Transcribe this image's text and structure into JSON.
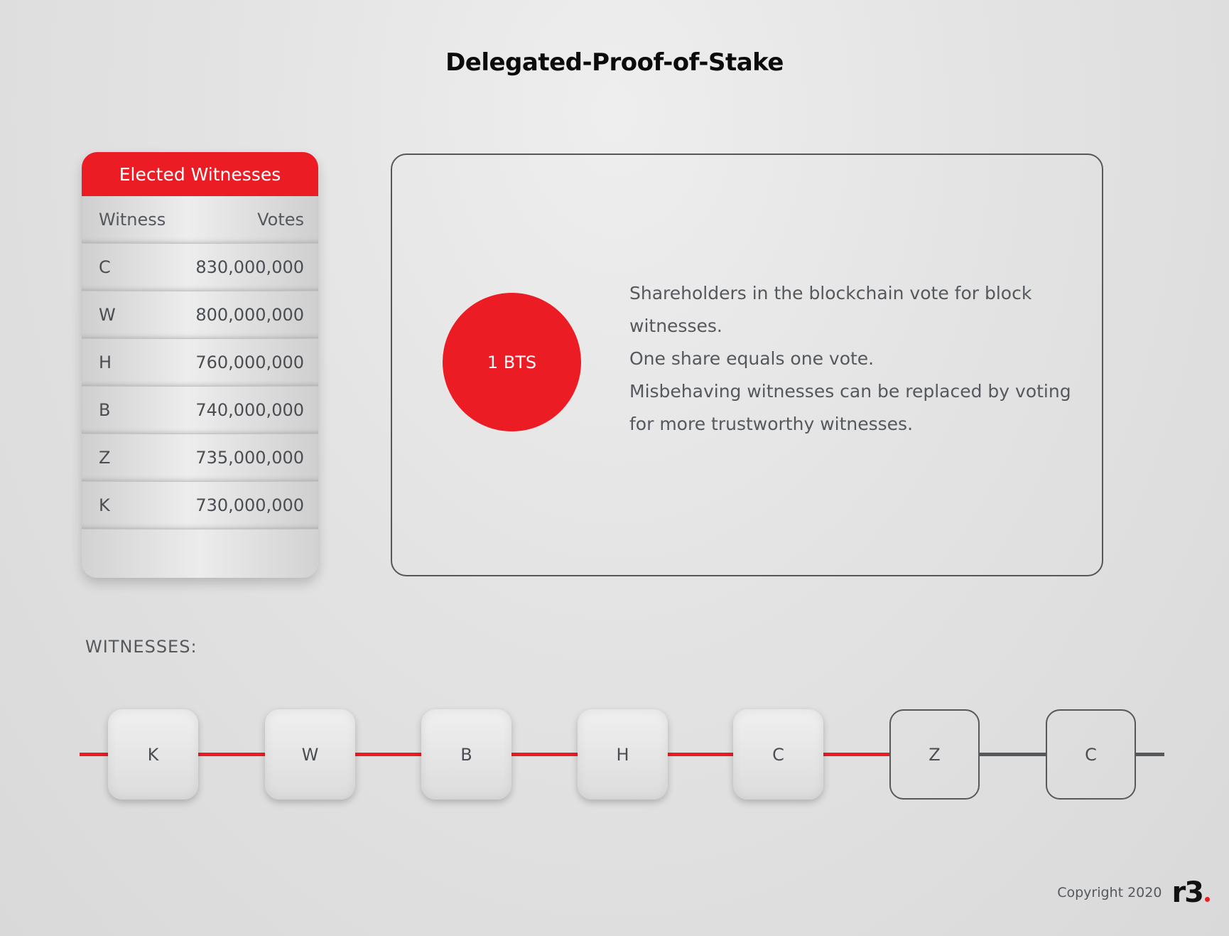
{
  "title": "Delegated-Proof-of-Stake",
  "elected": {
    "header": "Elected Witnesses",
    "col_witness": "Witness",
    "col_votes": "Votes",
    "rows": [
      {
        "witness": "C",
        "votes": "830,000,000"
      },
      {
        "witness": "W",
        "votes": "800,000,000"
      },
      {
        "witness": "H",
        "votes": "760,000,000"
      },
      {
        "witness": "B",
        "votes": "740,000,000"
      },
      {
        "witness": "Z",
        "votes": "735,000,000"
      },
      {
        "witness": "K",
        "votes": "730,000,000"
      }
    ]
  },
  "token": "1 BTS",
  "description": [
    "Shareholders in the blockchain vote for block witnesses.",
    "One share equals one vote.",
    "Misbehaving witnesses can be replaced by voting for more trustworthy witnesses."
  ],
  "witnesses_label": "WITNESSES:",
  "chain": [
    {
      "label": "K",
      "state": "filled"
    },
    {
      "label": "W",
      "state": "filled"
    },
    {
      "label": "B",
      "state": "filled"
    },
    {
      "label": "H",
      "state": "filled"
    },
    {
      "label": "C",
      "state": "filled"
    },
    {
      "label": "Z",
      "state": "outline"
    },
    {
      "label": "C",
      "state": "outline"
    }
  ],
  "colors": {
    "accent": "#ec1c24",
    "dark": "#55585d"
  },
  "footer": {
    "copyright": "Copyright 2020",
    "logo": "r3"
  }
}
